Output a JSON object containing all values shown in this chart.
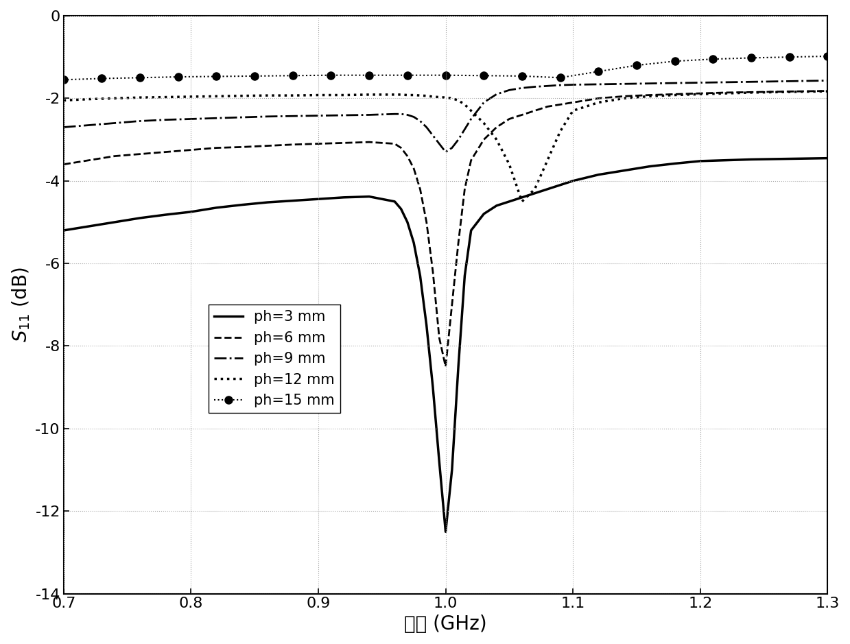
{
  "title": "",
  "xlabel": "频率 (GHz)",
  "ylabel": "S_{11} (dB)",
  "xlim": [
    0.7,
    1.3
  ],
  "ylim": [
    -14,
    0
  ],
  "xticks": [
    0.7,
    0.8,
    0.9,
    1.0,
    1.1,
    1.2,
    1.3
  ],
  "yticks": [
    0,
    -2,
    -4,
    -6,
    -8,
    -10,
    -12,
    -14
  ],
  "background_color": "#ffffff",
  "grid_color": "#aaaaaa",
  "series": [
    {
      "label": "ph=3 mm",
      "linestyle": "solid",
      "linewidth": 2.5,
      "color": "#000000",
      "marker": null,
      "markersize": 0,
      "x": [
        0.7,
        0.72,
        0.74,
        0.76,
        0.78,
        0.8,
        0.82,
        0.84,
        0.86,
        0.88,
        0.9,
        0.92,
        0.94,
        0.96,
        0.965,
        0.97,
        0.975,
        0.98,
        0.985,
        0.99,
        0.995,
        1.0,
        1.005,
        1.01,
        1.015,
        1.02,
        1.03,
        1.04,
        1.05,
        1.06,
        1.07,
        1.08,
        1.09,
        1.1,
        1.12,
        1.14,
        1.16,
        1.18,
        1.2,
        1.22,
        1.24,
        1.26,
        1.28,
        1.3
      ],
      "y": [
        -5.2,
        -5.1,
        -5.0,
        -4.9,
        -4.82,
        -4.75,
        -4.65,
        -4.58,
        -4.52,
        -4.48,
        -4.44,
        -4.4,
        -4.38,
        -4.5,
        -4.68,
        -5.0,
        -5.5,
        -6.3,
        -7.5,
        -9.0,
        -10.8,
        -12.5,
        -11.0,
        -8.5,
        -6.3,
        -5.2,
        -4.8,
        -4.6,
        -4.5,
        -4.4,
        -4.3,
        -4.2,
        -4.1,
        -4.0,
        -3.85,
        -3.75,
        -3.65,
        -3.58,
        -3.52,
        -3.5,
        -3.48,
        -3.47,
        -3.46,
        -3.45
      ]
    },
    {
      "label": "ph=6 mm",
      "linestyle": "dashed",
      "linewidth": 2.0,
      "color": "#000000",
      "marker": null,
      "markersize": 0,
      "x": [
        0.7,
        0.72,
        0.74,
        0.76,
        0.78,
        0.8,
        0.82,
        0.84,
        0.86,
        0.88,
        0.9,
        0.92,
        0.94,
        0.96,
        0.965,
        0.97,
        0.975,
        0.98,
        0.985,
        0.99,
        0.995,
        1.0,
        1.005,
        1.01,
        1.015,
        1.02,
        1.03,
        1.04,
        1.05,
        1.06,
        1.07,
        1.08,
        1.09,
        1.1,
        1.12,
        1.14,
        1.16,
        1.18,
        1.2,
        1.22,
        1.24,
        1.26,
        1.28,
        1.3
      ],
      "y": [
        -3.6,
        -3.5,
        -3.4,
        -3.35,
        -3.3,
        -3.25,
        -3.2,
        -3.18,
        -3.15,
        -3.12,
        -3.1,
        -3.08,
        -3.06,
        -3.1,
        -3.2,
        -3.4,
        -3.7,
        -4.2,
        -5.0,
        -6.2,
        -7.8,
        -8.5,
        -7.0,
        -5.5,
        -4.2,
        -3.5,
        -3.0,
        -2.7,
        -2.5,
        -2.4,
        -2.3,
        -2.2,
        -2.15,
        -2.1,
        -2.0,
        -1.95,
        -1.92,
        -1.9,
        -1.88,
        -1.86,
        -1.85,
        -1.84,
        -1.83,
        -1.82
      ]
    },
    {
      "label": "ph=9 mm",
      "linestyle": "dashdot",
      "linewidth": 2.0,
      "color": "#000000",
      "marker": null,
      "markersize": 0,
      "x": [
        0.7,
        0.72,
        0.74,
        0.76,
        0.78,
        0.8,
        0.82,
        0.84,
        0.86,
        0.88,
        0.9,
        0.92,
        0.94,
        0.96,
        0.965,
        0.97,
        0.975,
        0.98,
        0.985,
        0.99,
        0.995,
        1.0,
        1.005,
        1.01,
        1.02,
        1.03,
        1.04,
        1.05,
        1.06,
        1.07,
        1.08,
        1.09,
        1.1,
        1.12,
        1.14,
        1.16,
        1.18,
        1.2,
        1.22,
        1.24,
        1.26,
        1.28,
        1.3
      ],
      "y": [
        -2.7,
        -2.65,
        -2.6,
        -2.55,
        -2.52,
        -2.5,
        -2.48,
        -2.46,
        -2.44,
        -2.43,
        -2.42,
        -2.41,
        -2.4,
        -2.38,
        -2.38,
        -2.4,
        -2.45,
        -2.55,
        -2.7,
        -2.9,
        -3.1,
        -3.3,
        -3.2,
        -3.0,
        -2.5,
        -2.1,
        -1.9,
        -1.8,
        -1.75,
        -1.72,
        -1.7,
        -1.68,
        -1.67,
        -1.66,
        -1.65,
        -1.64,
        -1.63,
        -1.62,
        -1.61,
        -1.6,
        -1.59,
        -1.58,
        -1.57
      ]
    },
    {
      "label": "ph=12 mm",
      "linestyle": "dotted",
      "linewidth": 2.5,
      "color": "#000000",
      "marker": null,
      "markersize": 0,
      "x": [
        0.7,
        0.72,
        0.74,
        0.76,
        0.78,
        0.8,
        0.82,
        0.84,
        0.86,
        0.88,
        0.9,
        0.92,
        0.94,
        0.96,
        0.965,
        0.97,
        0.975,
        0.98,
        0.985,
        0.99,
        0.995,
        1.0,
        1.005,
        1.01,
        1.015,
        1.02,
        1.03,
        1.04,
        1.05,
        1.06,
        1.07,
        1.08,
        1.09,
        1.1,
        1.12,
        1.14,
        1.16,
        1.18,
        1.2,
        1.22,
        1.24,
        1.26,
        1.28,
        1.3
      ],
      "y": [
        -2.05,
        -2.02,
        -2.0,
        -1.98,
        -1.97,
        -1.96,
        -1.95,
        -1.94,
        -1.93,
        -1.93,
        -1.92,
        -1.92,
        -1.91,
        -1.91,
        -1.91,
        -1.92,
        -1.92,
        -1.93,
        -1.94,
        -1.96,
        -1.97,
        -1.98,
        -2.0,
        -2.05,
        -2.15,
        -2.3,
        -2.6,
        -3.0,
        -3.6,
        -4.5,
        -4.2,
        -3.5,
        -2.8,
        -2.3,
        -2.1,
        -2.0,
        -1.95,
        -1.92,
        -1.9,
        -1.88,
        -1.86,
        -1.85,
        -1.84,
        -1.83
      ]
    },
    {
      "label": "ph=15 mm",
      "linestyle": "dotted",
      "linewidth": 1.5,
      "color": "#000000",
      "marker": "o",
      "markersize": 8,
      "markerfacecolor": "#000000",
      "markeredgecolor": "#000000",
      "x": [
        0.7,
        0.73,
        0.76,
        0.79,
        0.82,
        0.85,
        0.88,
        0.91,
        0.94,
        0.97,
        1.0,
        1.03,
        1.06,
        1.09,
        1.12,
        1.15,
        1.18,
        1.21,
        1.24,
        1.27,
        1.3
      ],
      "y": [
        -1.55,
        -1.52,
        -1.5,
        -1.48,
        -1.47,
        -1.46,
        -1.45,
        -1.44,
        -1.44,
        -1.44,
        -1.44,
        -1.45,
        -1.46,
        -1.5,
        -1.35,
        -1.2,
        -1.1,
        -1.05,
        -1.02,
        -1.0,
        -0.98
      ]
    }
  ]
}
